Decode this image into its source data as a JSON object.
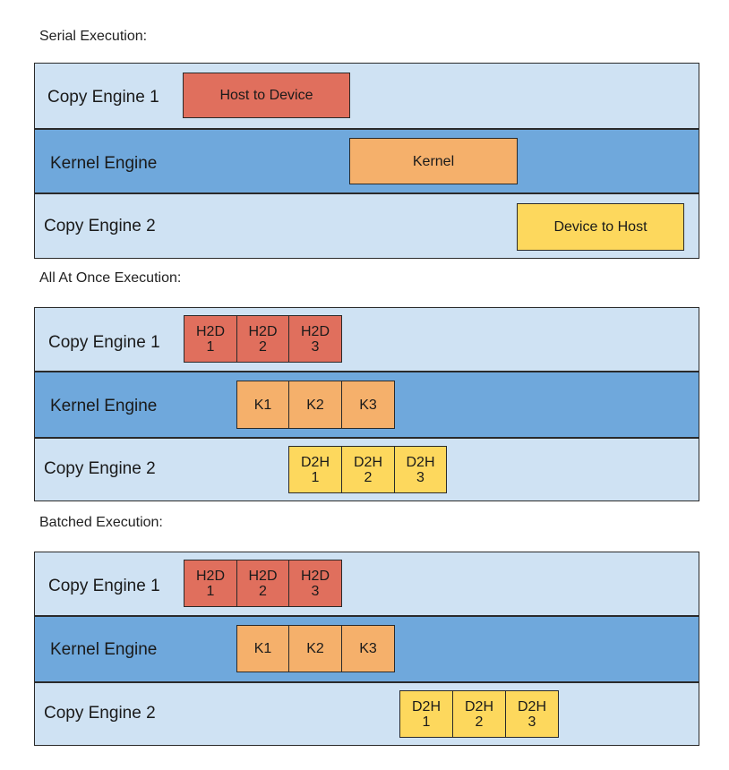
{
  "sections": [
    {
      "title": "Serial Execution:",
      "lanes": [
        {
          "label": "Copy Engine 1",
          "shade": "light",
          "blocks": [
            {
              "text": "Host to Device",
              "color": "red"
            }
          ]
        },
        {
          "label": "Kernel Engine",
          "shade": "dark",
          "blocks": [
            {
              "text": "Kernel",
              "color": "orange"
            }
          ]
        },
        {
          "label": "Copy Engine 2",
          "shade": "light",
          "blocks": [
            {
              "text": "Device to Host",
              "color": "yellow"
            }
          ]
        }
      ]
    },
    {
      "title": "All At Once Execution:",
      "lanes": [
        {
          "label": "Copy Engine 1",
          "shade": "light",
          "blocks": [
            {
              "text": "H2D\n1",
              "color": "red"
            },
            {
              "text": "H2D\n2",
              "color": "red"
            },
            {
              "text": "H2D\n3",
              "color": "red"
            }
          ]
        },
        {
          "label": "Kernel Engine",
          "shade": "dark",
          "blocks": [
            {
              "text": "K1",
              "color": "orange"
            },
            {
              "text": "K2",
              "color": "orange"
            },
            {
              "text": "K3",
              "color": "orange"
            }
          ]
        },
        {
          "label": "Copy Engine 2",
          "shade": "light",
          "blocks": [
            {
              "text": "D2H\n1",
              "color": "yellow"
            },
            {
              "text": "D2H\n2",
              "color": "yellow"
            },
            {
              "text": "D2H\n3",
              "color": "yellow"
            }
          ]
        }
      ]
    },
    {
      "title": "Batched Execution:",
      "lanes": [
        {
          "label": "Copy Engine 1",
          "shade": "light",
          "blocks": [
            {
              "text": "H2D\n1",
              "color": "red"
            },
            {
              "text": "H2D\n2",
              "color": "red"
            },
            {
              "text": "H2D\n3",
              "color": "red"
            }
          ]
        },
        {
          "label": "Kernel Engine",
          "shade": "dark",
          "blocks": [
            {
              "text": "K1",
              "color": "orange"
            },
            {
              "text": "K2",
              "color": "orange"
            },
            {
              "text": "K3",
              "color": "orange"
            }
          ]
        },
        {
          "label": "Copy Engine 2",
          "shade": "light",
          "blocks": [
            {
              "text": "D2H\n1",
              "color": "yellow"
            },
            {
              "text": "D2H\n2",
              "color": "yellow"
            },
            {
              "text": "D2H\n3",
              "color": "yellow"
            }
          ]
        }
      ]
    }
  ],
  "colors": {
    "red": "#e06f5d",
    "orange": "#f5b06b",
    "yellow": "#fdd85d",
    "lane_light": "#cfe2f3",
    "lane_dark": "#6fa8dc"
  }
}
